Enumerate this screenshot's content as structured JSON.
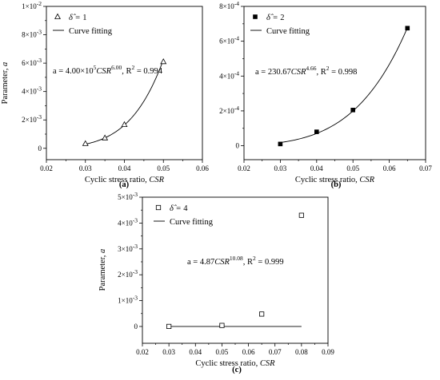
{
  "chart_data": [
    {
      "type": "scatter",
      "panel_label": "(a)",
      "xlabel": "Cyclic stress ratio, ",
      "xlabel_var": "CSR",
      "ylabel": "Parameter, ",
      "ylabel_var": "a",
      "xlim": [
        0.02,
        0.06
      ],
      "ylim": [
        -0.0008,
        0.01
      ],
      "xticks": [
        0.02,
        0.03,
        0.04,
        0.05,
        0.06
      ],
      "xtick_labels": [
        "0.02",
        "0.03",
        "0.04",
        "0.05",
        "0.06"
      ],
      "yticks": [
        0,
        0.002,
        0.004,
        0.006,
        0.008,
        0.01
      ],
      "ytick_labels": [
        {
          "mant": "0",
          "exp": ""
        },
        {
          "mant": "2×10",
          "exp": "-3"
        },
        {
          "mant": "4×10",
          "exp": "-3"
        },
        {
          "mant": "6×10",
          "exp": "-3"
        },
        {
          "mant": "8×10",
          "exp": "-3"
        },
        {
          "mant": "1×10",
          "exp": "-2"
        }
      ],
      "marker": "triangle-open",
      "x": [
        0.03,
        0.035,
        0.04,
        0.05
      ],
      "y": [
        0.00033,
        0.00073,
        0.00167,
        0.0061
      ],
      "fit": {
        "coef": 400000,
        "exp": 6.0,
        "x_start": 0.03,
        "x_end": 0.05
      },
      "legend": {
        "marker_label_pre": "δ̂ = ",
        "marker_label_val": "1",
        "line_label": "Curve fitting"
      },
      "equation": {
        "pre": "a = 4.00×10",
        "sup1": "5",
        "mid": "CSR",
        "sup2": "6.00",
        "post": ", R",
        "sup3": "2",
        "end": " = 0.994"
      }
    },
    {
      "type": "scatter",
      "panel_label": "(b)",
      "xlabel": "Cyclic stress ratio, ",
      "xlabel_var": "CSR",
      "ylabel": "",
      "ylabel_var": "",
      "xlim": [
        0.02,
        0.07
      ],
      "ylim": [
        -8e-05,
        0.0008
      ],
      "xticks": [
        0.02,
        0.03,
        0.04,
        0.05,
        0.06,
        0.07
      ],
      "xtick_labels": [
        "0.02",
        "0.03",
        "0.04",
        "0.05",
        "0.06",
        "0.07"
      ],
      "yticks": [
        0,
        0.0002,
        0.0004,
        0.0006,
        0.0008
      ],
      "ytick_labels": [
        {
          "mant": "0",
          "exp": ""
        },
        {
          "mant": "2×10",
          "exp": "-4"
        },
        {
          "mant": "4×10",
          "exp": "-4"
        },
        {
          "mant": "6×10",
          "exp": "-4"
        },
        {
          "mant": "8×10",
          "exp": "-4"
        }
      ],
      "marker": "square-filled",
      "x": [
        0.03,
        0.04,
        0.05,
        0.065
      ],
      "y": [
        1e-05,
        8e-05,
        0.000205,
        0.000675
      ],
      "fit": {
        "coef": 230.67,
        "exp": 4.66,
        "x_start": 0.03,
        "x_end": 0.065
      },
      "legend": {
        "marker_label_pre": "δ̂ = ",
        "marker_label_val": "2",
        "line_label": "Curve fitting"
      },
      "equation": {
        "pre": "a = 230.67",
        "sup1": "",
        "mid": "CSR",
        "sup2": "4.66",
        "post": ", R",
        "sup3": "2",
        "end": " = 0.998"
      }
    },
    {
      "type": "scatter",
      "panel_label": "(c)",
      "xlabel": "Cyclic stress ratio, ",
      "xlabel_var": "CSR",
      "ylabel": "Parameter, ",
      "ylabel_var": "a",
      "xlim": [
        0.02,
        0.09
      ],
      "ylim": [
        -0.00065,
        0.005
      ],
      "xticks": [
        0.02,
        0.03,
        0.04,
        0.05,
        0.06,
        0.07,
        0.08,
        0.09
      ],
      "xtick_labels": [
        "0.02",
        "0.03",
        "0.04",
        "0.05",
        "0.06",
        "0.07",
        "0.08",
        "0.09"
      ],
      "yticks": [
        0,
        0.001,
        0.002,
        0.003,
        0.004,
        0.005
      ],
      "ytick_labels": [
        {
          "mant": "0",
          "exp": ""
        },
        {
          "mant": "1×10",
          "exp": "-3"
        },
        {
          "mant": "2×10",
          "exp": "-3"
        },
        {
          "mant": "3×10",
          "exp": "-3"
        },
        {
          "mant": "4×10",
          "exp": "-3"
        },
        {
          "mant": "5×10",
          "exp": "-3"
        }
      ],
      "marker": "square-open",
      "x": [
        0.03,
        0.05,
        0.065,
        0.08
      ],
      "y": [
        1.5e-06,
        4e-05,
        0.00048,
        0.0043
      ],
      "fit": {
        "coef": 4.87,
        "exp": 10.08,
        "x_start": 0.03,
        "x_end": 0.08
      },
      "legend": {
        "marker_label_pre": "δ̂ = ",
        "marker_label_val": "4",
        "line_label": "Curve fitting"
      },
      "equation": {
        "pre": "a = 4.87",
        "sup1": "",
        "mid": "CSR",
        "sup2": "10.08",
        "post": ", R",
        "sup3": "2",
        "end": " = 0.999"
      }
    }
  ]
}
